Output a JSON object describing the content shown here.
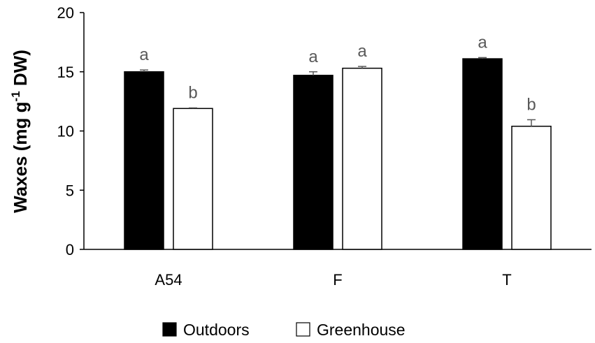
{
  "chart_data": {
    "type": "bar",
    "title": "",
    "ylabel": {
      "main": "Waxes (mg g",
      "superscript": "-1",
      "suffix": " DW)"
    },
    "xlabel": "",
    "ylim": [
      0,
      20
    ],
    "yticks": [
      0,
      5,
      10,
      15,
      20
    ],
    "categories": [
      "A54",
      "F",
      "T"
    ],
    "series": [
      {
        "name": "Outdoors",
        "color": "#000000",
        "values": [
          15.0,
          14.7,
          16.1
        ],
        "errors": [
          0.15,
          0.3,
          0.1
        ],
        "labels": [
          "a",
          "a",
          "a"
        ]
      },
      {
        "name": "Greenhouse",
        "color": "#ffffff",
        "values": [
          11.9,
          15.3,
          10.4
        ],
        "errors": [
          0.05,
          0.15,
          0.55
        ],
        "labels": [
          "b",
          "a",
          "b"
        ]
      }
    ],
    "legend_position": "bottom-center",
    "grid": false
  }
}
